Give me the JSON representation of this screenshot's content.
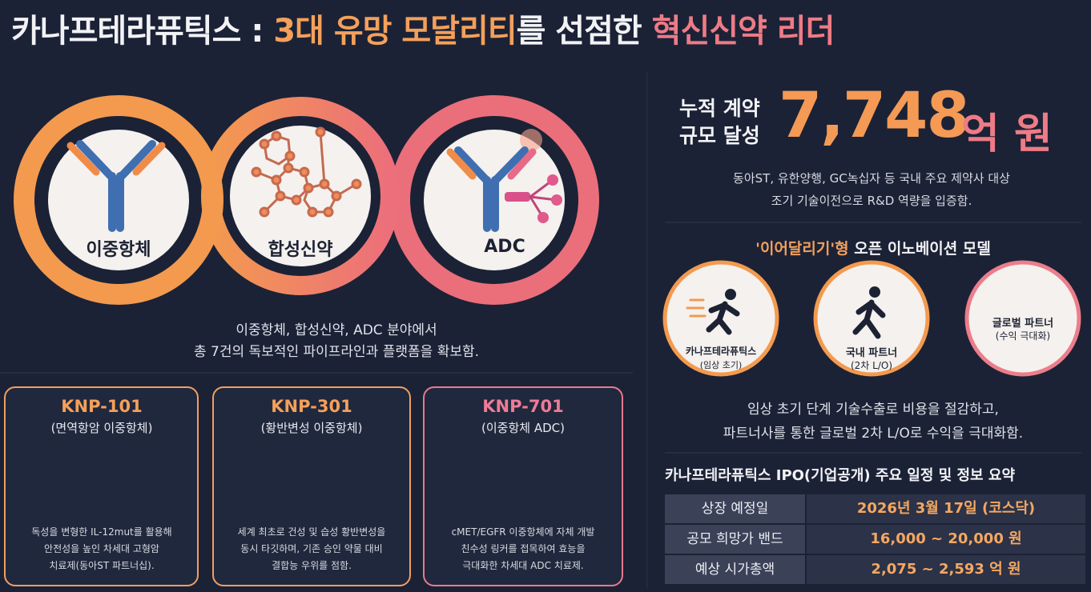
{
  "title": {
    "company": "카나프테라퓨틱스 :",
    "highlight": "3대 유망 모달리티",
    "middle": "를 선점한",
    "accent": "혁신신약 리더"
  },
  "modalities": {
    "items": [
      "이중항체",
      "합성신약",
      "ADC"
    ],
    "caption": [
      "이중항체, 합성신약, ADC 분야에서",
      "총 7건의 독보적인 파이프라인과 플랫폼을 확보함."
    ]
  },
  "pipelines": [
    {
      "code": "KNP-101",
      "subtitle": "(면역항암 이중항체)",
      "description": [
        "독성을 변형한 IL-12mut를 활용해",
        "안전성을 높인 차세대 고형암",
        "치료제(동아ST 파트너십)."
      ]
    },
    {
      "code": "KNP-301",
      "subtitle": "(황반변성 이중항체)",
      "description": [
        "세계 최초로 건성 및 습성 황반변성을",
        "동시 타깃하며, 기존 승인 약물 대비",
        "결합능 우위를 점함."
      ]
    },
    {
      "code": "KNP-701",
      "subtitle": "(이중항체 ADC)",
      "description": [
        "cMET/EGFR 이중항체에 자체 개발",
        "친수성 링커를 접목하여 효능을",
        "극대화한 차세대 ADC 치료제."
      ]
    }
  ],
  "contract": {
    "label": [
      "누적 계약",
      "규모 달성"
    ],
    "amount": "7,748",
    "unit": "억 원",
    "description": [
      "동아ST, 유한양행, GC녹십자 등 국내 주요 제약사 대상",
      "조기 기술이전으로 R&D 역량을 입증함."
    ]
  },
  "model": {
    "title_quote": "'이어달리기'형",
    "title_rest": "오픈 이노베이션 모델",
    "steps": [
      {
        "name": "카나프테라퓨틱스",
        "note": "(임상 초기)"
      },
      {
        "name": "국내 파트너",
        "note": "(2차 L/O)"
      },
      {
        "name": "글로벌 파트너",
        "note": "(수익 극대화)"
      }
    ],
    "description": [
      "임상 초기 단계 기술수출로 비용을 절감하고,",
      "파트너사를 통한 글로벌 2차 L/O로 수익을 극대화함."
    ]
  },
  "ipo": {
    "title": "카나프테라퓨틱스 IPO(기업공개) 주요 일정 및 정보 요약",
    "rows": [
      [
        "상장 예정일",
        "2026년 3월 17일 (코스닥)"
      ],
      [
        "공모 희망가 밴드",
        "16,000 ~ 20,000 원"
      ],
      [
        "예상 시가총액",
        "2,075 ~ 2,593 억 원"
      ]
    ]
  }
}
